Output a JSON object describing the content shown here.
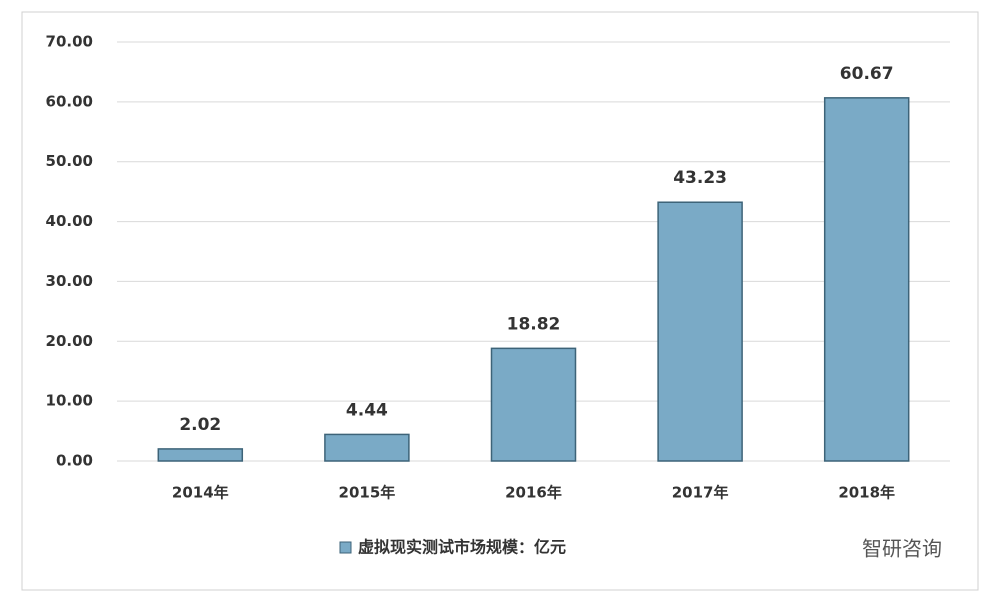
{
  "chart_data": {
    "type": "bar",
    "categories": [
      "2014年",
      "2015年",
      "2016年",
      "2017年",
      "2018年"
    ],
    "series": [
      {
        "name": "虚拟现实测试市场规模：亿元",
        "color": "#7aaac6",
        "values": [
          2.02,
          4.44,
          18.82,
          43.23,
          60.67
        ]
      }
    ],
    "ylim": [
      0,
      70
    ],
    "yticks": [
      {
        "value": 0,
        "label": "0.00"
      },
      {
        "value": 10,
        "label": "10.00"
      },
      {
        "value": 20,
        "label": "20.00"
      },
      {
        "value": 30,
        "label": "30.00"
      },
      {
        "value": 40,
        "label": "40.00"
      },
      {
        "value": 50,
        "label": "50.00"
      },
      {
        "value": 60,
        "label": "60.00"
      },
      {
        "value": 70,
        "label": "70.00"
      }
    ],
    "grid": true,
    "watermark": "智研咨询"
  }
}
